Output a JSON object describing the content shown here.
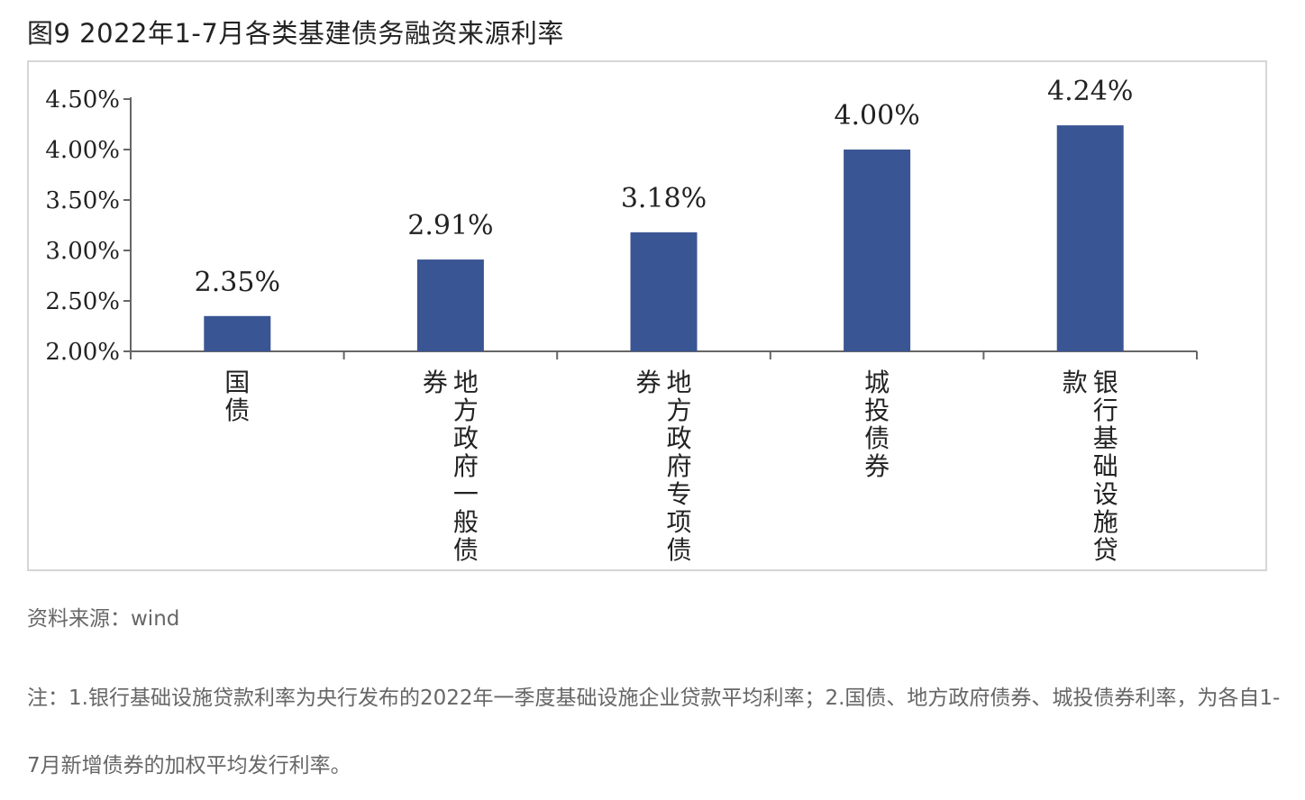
{
  "figure": {
    "title": "图9 2022年1-7月各类基建债务融资来源利率",
    "source": "资料来源：wind",
    "note": "注：1.银行基础设施贷款利率为央行发布的2022年一季度基础设施企业贷款平均利率；2.国债、地方政府债券、城投债券利率，为各自1-7月新增债券的加权平均发行利率。"
  },
  "colors": {
    "bar": "#3a5593",
    "axis": "#666666",
    "text": "#222222"
  },
  "chart_data": {
    "type": "bar",
    "categories": [
      "国债",
      "地方政府一般债券",
      "地方政府专项债券",
      "城投债券",
      "银行基础设施贷款"
    ],
    "values": [
      2.35,
      2.91,
      3.18,
      4.0,
      4.24
    ],
    "value_labels": [
      "2.35%",
      "2.91%",
      "3.18%",
      "4.00%",
      "4.24%"
    ],
    "category_label_columns": [
      [
        "国债"
      ],
      [
        "地方政府一般债",
        "券"
      ],
      [
        "地方政府专项债",
        "券"
      ],
      [
        "城投债券"
      ],
      [
        "银行基础设施贷",
        "款"
      ]
    ],
    "yticks": [
      "2.00%",
      "2.50%",
      "3.00%",
      "3.50%",
      "4.00%",
      "4.50%"
    ],
    "ytick_values": [
      2.0,
      2.5,
      3.0,
      3.5,
      4.0,
      4.5
    ],
    "ylim": [
      2.0,
      4.5
    ],
    "grid": false,
    "legend": "none",
    "title": "",
    "xlabel": "",
    "ylabel": ""
  }
}
